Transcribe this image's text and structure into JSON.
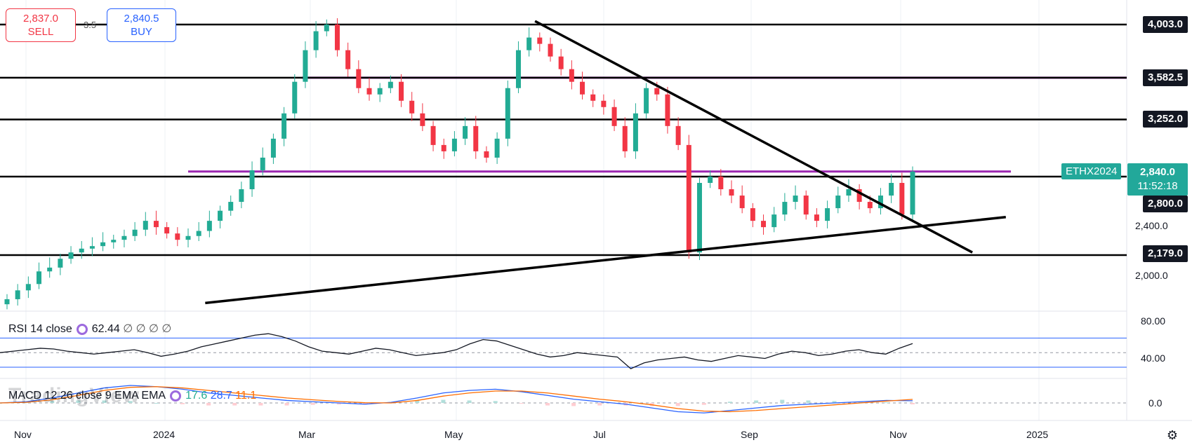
{
  "trade": {
    "sell_price": "2,837.0",
    "sell_label": "SELL",
    "buy_price": "2,840.5",
    "buy_label": "BUY",
    "spread": "3.5"
  },
  "symbol": "ETHX2024",
  "current": {
    "price": "2,840.0",
    "countdown": "11:52:18"
  },
  "price_levels": [
    "4,003.0",
    "3,582.5",
    "3,252.0",
    "2,800.0",
    "2,179.0"
  ],
  "price_axis_ticks": [
    "2,400.0",
    "2,000.0"
  ],
  "rsi": {
    "label": "RSI 14 close",
    "value": "62.44",
    "extras": "∅ ∅ ∅ ∅",
    "ticks": [
      "80.00",
      "40.00"
    ]
  },
  "macd": {
    "label": "MACD 12 26 close 9 EMA EMA",
    "v1": "17.6",
    "v2": "28.7",
    "v3": "11.1",
    "ticks": [
      "0.0"
    ]
  },
  "watermark": "TradingView",
  "time_labels": [
    "Nov",
    "2024",
    "Mar",
    "May",
    "Jul",
    "Sep",
    "Nov",
    "2025"
  ],
  "colors": {
    "up": "#22ab94",
    "down": "#f23645",
    "level": "#000000",
    "zone": "#9c27b0",
    "accent": "#22a89a"
  },
  "chart_data": {
    "type": "candlestick",
    "x_range": [
      "2023-10",
      "2025-01"
    ],
    "ylim": [
      1800,
      4200
    ],
    "horizontal_levels": [
      4003,
      3582.5,
      3252,
      2800,
      2179
    ],
    "zones": [
      3582.5,
      2840
    ],
    "candles_close_approx": [
      1830,
      1900,
      1950,
      2050,
      2080,
      2150,
      2200,
      2230,
      2250,
      2280,
      2300,
      2330,
      2380,
      2450,
      2400,
      2350,
      2300,
      2330,
      2370,
      2450,
      2530,
      2600,
      2700,
      2850,
      2950,
      3100,
      3300,
      3550,
      3800,
      3950,
      4003,
      3800,
      3650,
      3500,
      3450,
      3500,
      3550,
      3400,
      3300,
      3200,
      3050,
      3000,
      3100,
      3200,
      3000,
      2950,
      3100,
      3500,
      3800,
      3900,
      3850,
      3750,
      3650,
      3550,
      3450,
      3400,
      3350,
      3200,
      3000,
      3300,
      3500,
      3450,
      3200,
      3050,
      2200,
      2750,
      2800,
      2700,
      2650,
      2550,
      2450,
      2400,
      2500,
      2600,
      2650,
      2500,
      2450,
      2550,
      2650,
      2700,
      2600,
      2550,
      2650,
      2750,
      2500,
      2840
    ],
    "rsi_values_approx": [
      50,
      52,
      54,
      56,
      55,
      52,
      50,
      48,
      50,
      52,
      54,
      50,
      45,
      48,
      52,
      58,
      62,
      66,
      70,
      74,
      76,
      72,
      66,
      58,
      52,
      50,
      48,
      52,
      56,
      54,
      50,
      46,
      48,
      50,
      54,
      62,
      68,
      66,
      60,
      54,
      48,
      44,
      46,
      50,
      48,
      46,
      44,
      28,
      36,
      40,
      42,
      44,
      40,
      38,
      42,
      46,
      44,
      42,
      48,
      52,
      50,
      46,
      48,
      52,
      54,
      50,
      48,
      56,
      62.44
    ],
    "rsi_bands": [
      70,
      30
    ],
    "macd": {
      "macd": [
        0,
        10,
        40,
        80,
        120,
        140,
        130,
        110,
        80,
        60,
        40,
        20,
        10,
        0,
        -10,
        5,
        40,
        80,
        100,
        110,
        90,
        60,
        30,
        10,
        -10,
        -40,
        -70,
        -80,
        -60,
        -40,
        -20,
        -10,
        0,
        10,
        20,
        17.6
      ],
      "signal": [
        0,
        5,
        25,
        60,
        100,
        125,
        130,
        120,
        100,
        80,
        60,
        40,
        25,
        12,
        2,
        0,
        20,
        55,
        80,
        95,
        95,
        80,
        55,
        30,
        10,
        -15,
        -45,
        -65,
        -70,
        -60,
        -45,
        -30,
        -15,
        0,
        15,
        28.7
      ]
    },
    "trendlines": [
      {
        "from": [
          "2024-01-15",
          1800
        ],
        "to": [
          "2024-12-15",
          2480
        ]
      },
      {
        "from": [
          "2024-06-01",
          4030
        ],
        "to": [
          "2024-12-01",
          2200
        ]
      }
    ]
  }
}
